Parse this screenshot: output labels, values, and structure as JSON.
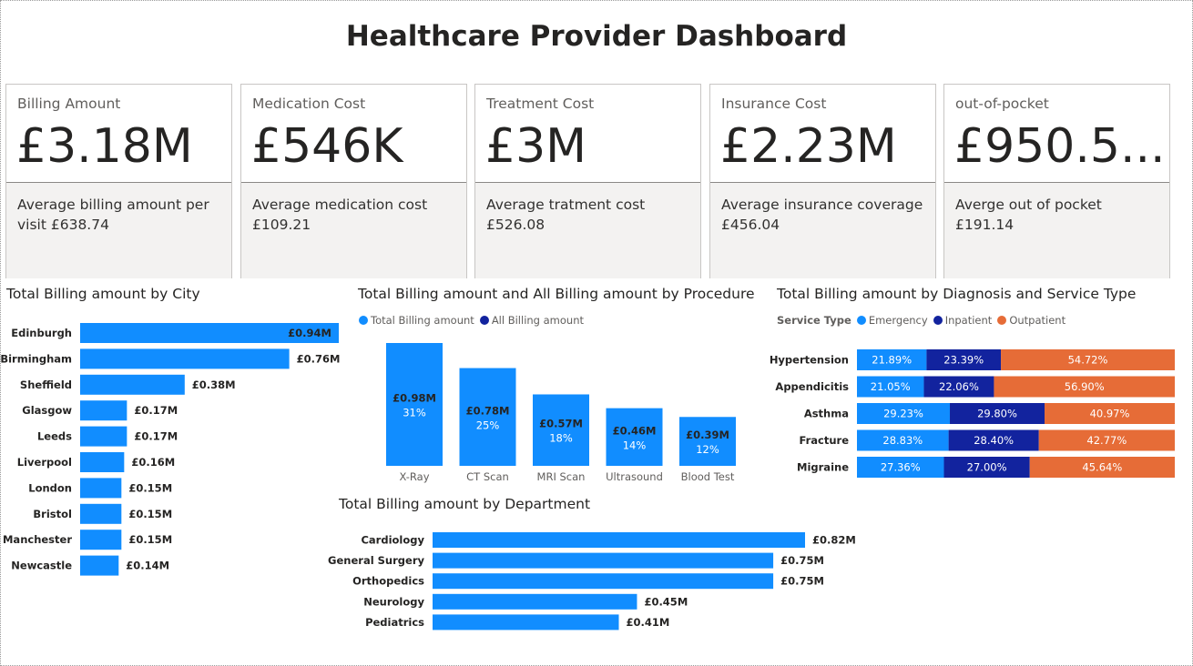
{
  "page": {
    "title": "Healthcare Provider Dashboard"
  },
  "colors": {
    "bar": "#118dff",
    "inpatient": "#12239e",
    "outpatient": "#e66c37",
    "card_bg": "#f3f2f1"
  },
  "kpis": [
    {
      "label": "Billing Amount",
      "value": "£3.18M",
      "detail": "Average billing amount per visit £638.74"
    },
    {
      "label": "Medication Cost",
      "value": "£546K",
      "detail": "Average medication cost £109.21"
    },
    {
      "label": "Treatment Cost",
      "value": "£3M",
      "detail": "Average tratment cost £526.08"
    },
    {
      "label": "Insurance Cost",
      "value": "£2.23M",
      "detail": "Average insurance coverage £456.04"
    },
    {
      "label": "out-of-pocket",
      "value": "£950.5...",
      "detail": "Averge out of pocket £191.14"
    }
  ],
  "chart_data": [
    {
      "type": "bar",
      "orientation": "horizontal",
      "title": "Total Billing amount by City",
      "categories": [
        "Edinburgh",
        "Birmingham",
        "Sheffield",
        "Glasgow",
        "Leeds",
        "Liverpool",
        "London",
        "Bristol",
        "Manchester",
        "Newcastle"
      ],
      "values": [
        0.94,
        0.76,
        0.38,
        0.17,
        0.17,
        0.16,
        0.15,
        0.15,
        0.15,
        0.14
      ],
      "labels": [
        "£0.94M",
        "£0.76M",
        "£0.38M",
        "£0.17M",
        "£0.17M",
        "£0.16M",
        "£0.15M",
        "£0.15M",
        "£0.15M",
        "£0.14M"
      ],
      "unit": "£M"
    },
    {
      "type": "bar",
      "title": "Total Billing amount and All Billing amount by Procedure",
      "legend": [
        "Total Billing amount",
        "All Billing amount"
      ],
      "categories": [
        "X-Ray",
        "CT Scan",
        "MRI Scan",
        "Ultrasound",
        "Blood Test"
      ],
      "values": [
        0.98,
        0.78,
        0.57,
        0.46,
        0.39
      ],
      "labels": [
        "£0.98M",
        "£0.78M",
        "£0.57M",
        "£0.46M",
        "£0.39M"
      ],
      "percent_labels": [
        "31%",
        "25%",
        "18%",
        "14%",
        "12%"
      ],
      "unit": "£M"
    },
    {
      "type": "bar",
      "orientation": "horizontal",
      "stacked": "100%",
      "title": "Total Billing amount by Diagnosis and Service Type",
      "legend_title": "Service Type",
      "categories": [
        "Hypertension",
        "Appendicitis",
        "Asthma",
        "Fracture",
        "Migraine"
      ],
      "series": [
        {
          "name": "Emergency",
          "values": [
            21.89,
            21.05,
            29.23,
            28.83,
            27.36
          ],
          "labels": [
            "21.89%",
            "21.05%",
            "29.23%",
            "28.83%",
            "27.36%"
          ]
        },
        {
          "name": "Inpatient",
          "values": [
            23.39,
            22.06,
            29.8,
            28.4,
            27.0
          ],
          "labels": [
            "23.39%",
            "22.06%",
            "29.80%",
            "28.40%",
            "27.00%"
          ]
        },
        {
          "name": "Outpatient",
          "values": [
            54.72,
            56.9,
            40.97,
            42.77,
            45.64
          ],
          "labels": [
            "54.72%",
            "56.90%",
            "40.97%",
            "42.77%",
            "45.64%"
          ]
        }
      ]
    },
    {
      "type": "bar",
      "orientation": "horizontal",
      "title": "Total Billing amount by Department",
      "categories": [
        "Cardiology",
        "General Surgery",
        "Orthopedics",
        "Neurology",
        "Pediatrics"
      ],
      "values": [
        0.82,
        0.75,
        0.75,
        0.45,
        0.41
      ],
      "labels": [
        "£0.82M",
        "£0.75M",
        "£0.75M",
        "£0.45M",
        "£0.41M"
      ],
      "unit": "£M"
    }
  ]
}
